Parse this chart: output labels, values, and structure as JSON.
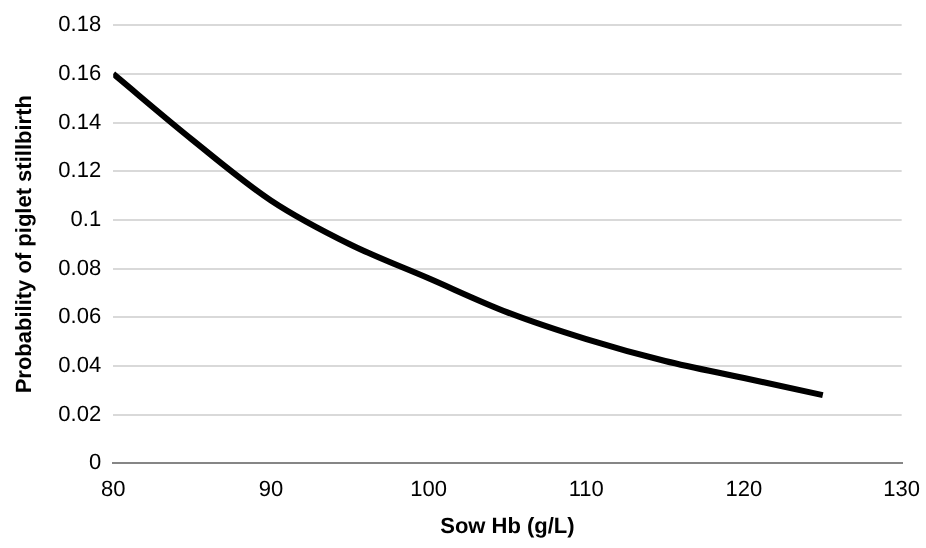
{
  "chart_data": {
    "type": "line",
    "xlabel": "Sow Hb (g/L)",
    "ylabel": "Probability of piglet stillbirth",
    "x": [
      80,
      85,
      90,
      95,
      100,
      105,
      110,
      115,
      120,
      125
    ],
    "series": [
      {
        "color": "#000000",
        "values": [
          0.16,
          0.133,
          0.108,
          0.09,
          0.076,
          0.062,
          0.051,
          0.042,
          0.035,
          0.028
        ]
      }
    ],
    "xlim": [
      80,
      130
    ],
    "xticks": [
      80,
      90,
      100,
      110,
      120,
      130
    ],
    "ylim": [
      0,
      0.18
    ],
    "yticks": [
      0,
      0.02,
      0.04,
      0.06,
      0.08,
      0.1,
      0.12,
      0.14,
      0.16,
      0.18
    ],
    "grid": "y",
    "legend": false,
    "marker": "none",
    "line_style": "solid"
  }
}
